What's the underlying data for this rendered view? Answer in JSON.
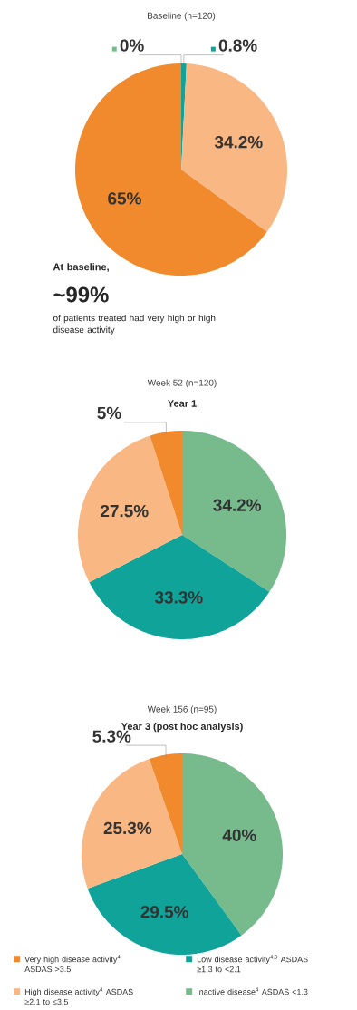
{
  "chart_data": [
    {
      "type": "pie",
      "title": "Baseline (n=120)",
      "categories": [
        null,
        null,
        null,
        null
      ],
      "values": [
        0.8,
        34.2,
        65,
        0
      ],
      "colors": [
        "#10a39a",
        "#f9b783",
        "#f08a2c",
        "#77bb8d"
      ],
      "value_labels": [
        "0.8%",
        "34.2%",
        "65%",
        "0%"
      ],
      "annotations": [
        "At baseline,",
        "~99%",
        "of patients treated had very high or high disease activity"
      ]
    },
    {
      "type": "pie",
      "title": "Week 52 (n=120)",
      "subtitle": "Year 1",
      "categories": [
        null,
        null,
        null,
        null
      ],
      "values": [
        34.2,
        33.3,
        27.5,
        5
      ],
      "colors": [
        "#77bb8d",
        "#10a39a",
        "#f9b783",
        "#f08a2c"
      ],
      "value_labels": [
        "34.2%",
        "33.3%",
        "27.5%",
        "5%"
      ]
    },
    {
      "type": "pie",
      "title": "Week 156 (n=95)",
      "subtitle": "Year 3 (post hoc analysis)",
      "categories": [
        "Inactive disease$^{4}$ ASDAS <1.3",
        "Low disease activity$^{4,9}$ ASDAS ≥1.3 to <2.1",
        "High disease activity$^{4}$ ASDAS ≥2.1 to ≤3.5",
        "Very high disease activity$^{4}$ ASDAS >3.5"
      ],
      "values": [
        40,
        29.5,
        25.3,
        5.3
      ],
      "colors": [
        "#77bb8d",
        "#10a39a",
        "#f9b783",
        "#f08a2c"
      ],
      "value_labels": [
        "40%",
        "29.5%",
        "25.3%",
        "5.3%"
      ],
      "legend": "bottom"
    }
  ]
}
